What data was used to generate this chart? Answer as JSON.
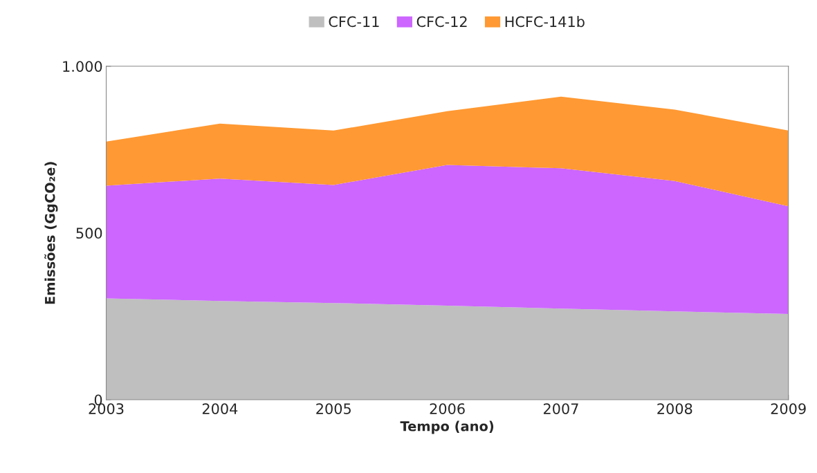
{
  "chart_data": {
    "type": "area",
    "stacked": true,
    "xlabel": "Tempo (ano)",
    "ylabel": "Emissões (GgCO₂e)",
    "x": [
      2003,
      2004,
      2005,
      2006,
      2007,
      2008,
      2009
    ],
    "xlim": [
      2003,
      2009
    ],
    "xticks": [
      2003,
      2004,
      2005,
      2006,
      2007,
      2008,
      2009
    ],
    "ylim": [
      0,
      1000
    ],
    "yticks": [
      0,
      {
        "value": 500,
        "label": "500"
      },
      {
        "value": 1000,
        "label": "1.000"
      }
    ],
    "grid": false,
    "legend": "top",
    "series": [
      {
        "name": "CFC-11",
        "color": "#bfbfbf",
        "values": [
          304,
          296,
          290,
          282,
          273,
          265,
          257
        ]
      },
      {
        "name": "CFC-12",
        "color": "#cc66ff",
        "values": [
          338,
          367,
          354,
          422,
          421,
          391,
          323
        ]
      },
      {
        "name": "HCFC-141b",
        "color": "#ff9933",
        "values": [
          132,
          165,
          163,
          161,
          215,
          214,
          227
        ]
      }
    ]
  }
}
